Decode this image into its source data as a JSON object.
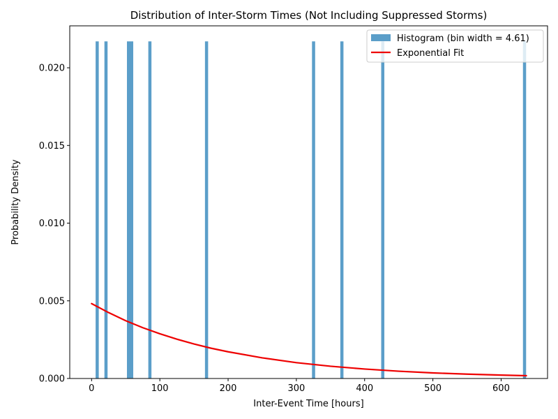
{
  "chart_data": {
    "type": "bar",
    "title": "Distribution of Inter-Storm Times (Not Including Suppressed Storms)",
    "xlabel": "Inter-Event Time [hours]",
    "ylabel": "Probability Density",
    "xlim": [
      -32,
      668
    ],
    "ylim": [
      0,
      0.0227
    ],
    "xticks": [
      0,
      100,
      200,
      300,
      400,
      500,
      600
    ],
    "xtick_labels": [
      "0",
      "100",
      "200",
      "300",
      "400",
      "500",
      "600"
    ],
    "yticks": [
      0,
      0.005,
      0.01,
      0.015,
      0.02
    ],
    "ytick_labels": [
      "0.000",
      "0.005",
      "0.010",
      "0.015",
      "0.020"
    ],
    "grid": false,
    "legend_position": "top-right",
    "histogram": {
      "name": "Histogram (bin width = 4.61)",
      "bin_width": 4.61,
      "color": "#5b9ec9",
      "bins": [
        {
          "x": 5.9,
          "density": 0.0217
        },
        {
          "x": 18.8,
          "density": 0.0217
        },
        {
          "x": 51.8,
          "density": 0.0217
        },
        {
          "x": 56.4,
          "density": 0.0217
        },
        {
          "x": 83.1,
          "density": 0.0217
        },
        {
          "x": 166.1,
          "density": 0.0217
        },
        {
          "x": 322.9,
          "density": 0.0217
        },
        {
          "x": 364.4,
          "density": 0.0217
        },
        {
          "x": 424.3,
          "density": 0.0217
        },
        {
          "x": 632.0,
          "density": 0.0217
        }
      ]
    },
    "fit": {
      "name": "Exponential Fit",
      "color": "#ee0000",
      "x": [
        0,
        25,
        50,
        75,
        100,
        125,
        150,
        175,
        200,
        250,
        300,
        350,
        400,
        450,
        500,
        550,
        600,
        637
      ],
      "y": [
        0.00482,
        0.00424,
        0.00372,
        0.00327,
        0.00288,
        0.00253,
        0.00222,
        0.00195,
        0.00172,
        0.00133,
        0.00102,
        0.00079,
        0.00061,
        0.00047,
        0.00036,
        0.00028,
        0.00022,
        0.00018
      ]
    }
  }
}
